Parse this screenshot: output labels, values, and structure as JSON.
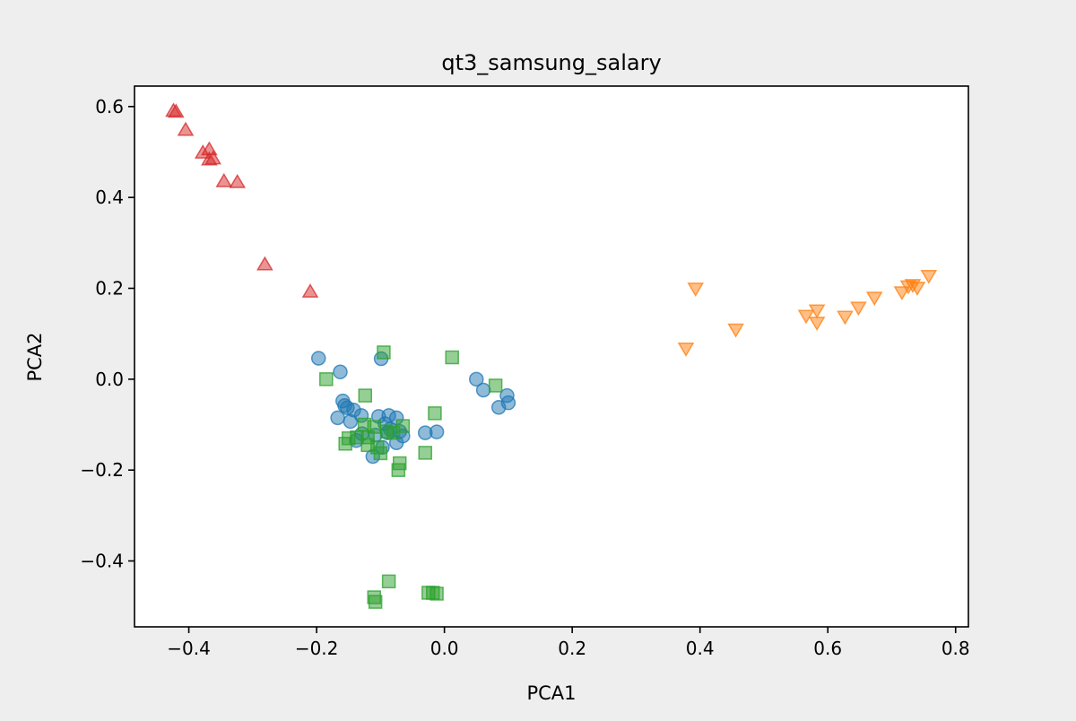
{
  "chart_data": {
    "type": "scatter",
    "title": "qt3_samsung_salary",
    "xlabel": "PCA1",
    "ylabel": "PCA2",
    "xlim": [
      -0.485,
      0.82
    ],
    "ylim": [
      -0.545,
      0.645
    ],
    "x_ticks": [
      -0.4,
      -0.2,
      0.0,
      0.2,
      0.4,
      0.6,
      0.8
    ],
    "x_tick_labels": [
      "−0.4",
      "−0.2",
      "0.0",
      "0.2",
      "0.4",
      "0.6",
      "0.8"
    ],
    "y_ticks": [
      -0.4,
      -0.2,
      0.0,
      0.2,
      0.4,
      0.6
    ],
    "y_tick_labels": [
      "−0.4",
      "−0.2",
      "0.0",
      "0.2",
      "0.4",
      "0.6"
    ],
    "grid": false,
    "legend": "none",
    "series": [
      {
        "marker": "circle",
        "color": "#1f77b4",
        "points": [
          [
            -0.197,
            0.046
          ],
          [
            -0.163,
            0.016
          ],
          [
            -0.099,
            0.045
          ],
          [
            -0.159,
            -0.048
          ],
          [
            -0.156,
            -0.058
          ],
          [
            -0.152,
            -0.063
          ],
          [
            -0.142,
            -0.068
          ],
          [
            -0.167,
            -0.085
          ],
          [
            -0.147,
            -0.093
          ],
          [
            -0.13,
            -0.08
          ],
          [
            -0.103,
            -0.082
          ],
          [
            -0.087,
            -0.08
          ],
          [
            -0.075,
            -0.085
          ],
          [
            -0.093,
            -0.098
          ],
          [
            -0.085,
            -0.11
          ],
          [
            -0.07,
            -0.115
          ],
          [
            -0.089,
            -0.118
          ],
          [
            -0.108,
            -0.123
          ],
          [
            -0.129,
            -0.12
          ],
          [
            -0.138,
            -0.135
          ],
          [
            -0.112,
            -0.17
          ],
          [
            -0.097,
            -0.15
          ],
          [
            -0.075,
            -0.14
          ],
          [
            -0.065,
            -0.125
          ],
          [
            -0.03,
            -0.118
          ],
          [
            -0.012,
            -0.116
          ],
          [
            0.05,
            0.0
          ],
          [
            0.061,
            -0.024
          ],
          [
            0.085,
            -0.062
          ],
          [
            0.098,
            -0.036
          ],
          [
            0.1,
            -0.052
          ]
        ]
      },
      {
        "marker": "triangle_down",
        "color": "#ff7f0e",
        "points": [
          [
            0.378,
            0.068
          ],
          [
            0.393,
            0.2
          ],
          [
            0.456,
            0.11
          ],
          [
            0.566,
            0.14
          ],
          [
            0.583,
            0.152
          ],
          [
            0.583,
            0.125
          ],
          [
            0.627,
            0.138
          ],
          [
            0.648,
            0.158
          ],
          [
            0.673,
            0.18
          ],
          [
            0.716,
            0.192
          ],
          [
            0.726,
            0.205
          ],
          [
            0.733,
            0.208
          ],
          [
            0.74,
            0.202
          ],
          [
            0.758,
            0.228
          ]
        ]
      },
      {
        "marker": "square",
        "color": "#2ca02c",
        "points": [
          [
            -0.095,
            0.059
          ],
          [
            0.012,
            0.048
          ],
          [
            -0.185,
            0.0
          ],
          [
            0.08,
            -0.014
          ],
          [
            -0.124,
            -0.036
          ],
          [
            -0.015,
            -0.075
          ],
          [
            -0.125,
            -0.1
          ],
          [
            -0.11,
            -0.105
          ],
          [
            -0.065,
            -0.103
          ],
          [
            -0.09,
            -0.115
          ],
          [
            -0.08,
            -0.118
          ],
          [
            -0.12,
            -0.128
          ],
          [
            -0.15,
            -0.13
          ],
          [
            -0.155,
            -0.142
          ],
          [
            -0.137,
            -0.128
          ],
          [
            -0.12,
            -0.145
          ],
          [
            -0.105,
            -0.15
          ],
          [
            -0.1,
            -0.163
          ],
          [
            -0.07,
            -0.185
          ],
          [
            -0.072,
            -0.2
          ],
          [
            -0.03,
            -0.162
          ],
          [
            -0.087,
            -0.445
          ],
          [
            -0.11,
            -0.48
          ],
          [
            -0.108,
            -0.49
          ],
          [
            -0.025,
            -0.47
          ],
          [
            -0.018,
            -0.47
          ],
          [
            -0.012,
            -0.472
          ]
        ]
      },
      {
        "marker": "triangle_up",
        "color": "#d62728",
        "points": [
          [
            -0.424,
            0.59
          ],
          [
            -0.42,
            0.588
          ],
          [
            -0.405,
            0.548
          ],
          [
            -0.378,
            0.498
          ],
          [
            -0.368,
            0.505
          ],
          [
            -0.368,
            0.483
          ],
          [
            -0.362,
            0.485
          ],
          [
            -0.345,
            0.435
          ],
          [
            -0.324,
            0.433
          ],
          [
            -0.281,
            0.252
          ],
          [
            -0.21,
            0.192
          ]
        ]
      }
    ]
  }
}
